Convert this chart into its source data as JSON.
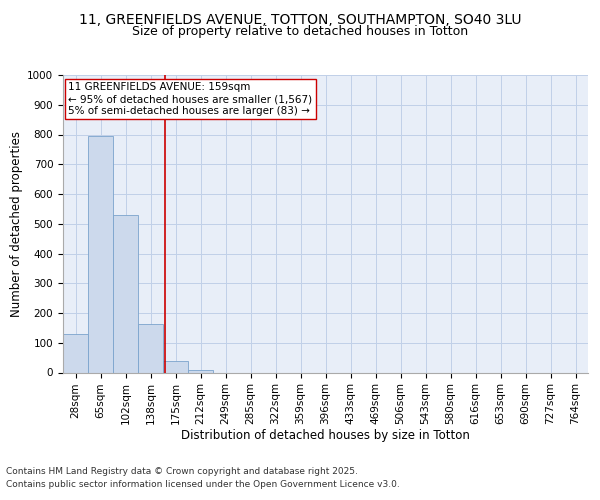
{
  "title_line1": "11, GREENFIELDS AVENUE, TOTTON, SOUTHAMPTON, SO40 3LU",
  "title_line2": "Size of property relative to detached houses in Totton",
  "xlabel": "Distribution of detached houses by size in Totton",
  "ylabel": "Number of detached properties",
  "categories": [
    "28sqm",
    "65sqm",
    "102sqm",
    "138sqm",
    "175sqm",
    "212sqm",
    "249sqm",
    "285sqm",
    "322sqm",
    "359sqm",
    "396sqm",
    "433sqm",
    "469sqm",
    "506sqm",
    "543sqm",
    "580sqm",
    "616sqm",
    "653sqm",
    "690sqm",
    "727sqm",
    "764sqm"
  ],
  "values": [
    130,
    795,
    530,
    162,
    38,
    8,
    0,
    0,
    0,
    0,
    0,
    0,
    0,
    0,
    0,
    0,
    0,
    0,
    0,
    0,
    0
  ],
  "bar_color": "#ccd9ec",
  "bar_edge_color": "#7ba3cc",
  "grid_color": "#c0d0e8",
  "background_color": "#e8eef8",
  "vline_color": "#cc0000",
  "annotation_text": "11 GREENFIELDS AVENUE: 159sqm\n← 95% of detached houses are smaller (1,567)\n5% of semi-detached houses are larger (83) →",
  "annotation_box_color": "#ffffff",
  "annotation_box_edge": "#cc0000",
  "ylim": [
    0,
    1000
  ],
  "yticks": [
    0,
    100,
    200,
    300,
    400,
    500,
    600,
    700,
    800,
    900,
    1000
  ],
  "footer_line1": "Contains HM Land Registry data © Crown copyright and database right 2025.",
  "footer_line2": "Contains public sector information licensed under the Open Government Licence v3.0.",
  "title_fontsize": 10,
  "subtitle_fontsize": 9,
  "axis_label_fontsize": 8.5,
  "tick_fontsize": 7.5,
  "annotation_fontsize": 7.5,
  "footer_fontsize": 6.5
}
